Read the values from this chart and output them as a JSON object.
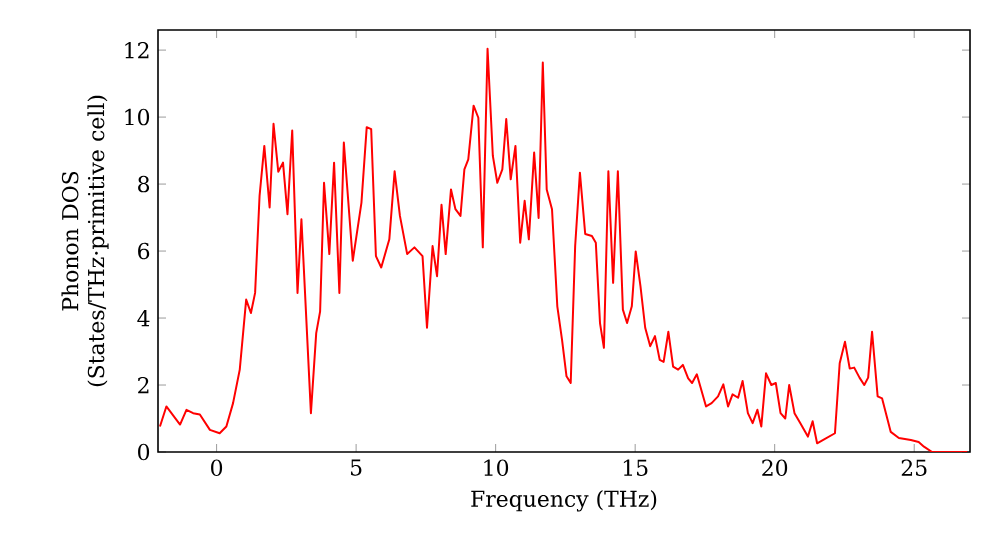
{
  "chart_data": {
    "type": "line",
    "xlabel": "Frequency (THz)",
    "ylabel": "Phonon DOS (States/THz·primitive cell)",
    "xlim": [
      -2.1,
      27
    ],
    "ylim": [
      0,
      12.6
    ],
    "xticks": [
      0,
      5,
      10,
      15,
      20,
      25
    ],
    "yticks": [
      0,
      2,
      4,
      6,
      8,
      10,
      12
    ],
    "grid": false,
    "marker": "none",
    "line_style": "solid",
    "series": [
      {
        "color": "#ff0000",
        "x": [
          -2.03,
          -1.8,
          -1.31,
          -1.08,
          -0.84,
          -0.6,
          -0.24,
          0.11,
          0.35,
          0.59,
          0.83,
          1.06,
          1.23,
          1.38,
          1.54,
          1.71,
          1.9,
          2.04,
          2.21,
          2.38,
          2.54,
          2.71,
          2.9,
          3.04,
          3.38,
          3.57,
          3.71,
          3.85,
          4.04,
          4.21,
          4.4,
          4.56,
          4.88,
          5.19,
          5.38,
          5.54,
          5.71,
          5.9,
          6.19,
          6.38,
          6.57,
          6.83,
          7.09,
          7.38,
          7.54,
          7.74,
          7.9,
          8.06,
          8.21,
          8.4,
          8.56,
          8.74,
          8.88,
          9.02,
          9.21,
          9.38,
          9.54,
          9.71,
          9.9,
          10.06,
          10.24,
          10.38,
          10.54,
          10.71,
          10.88,
          11.04,
          11.19,
          11.38,
          11.54,
          11.69,
          11.83,
          12.02,
          12.21,
          12.38,
          12.54,
          12.69,
          12.85,
          13.02,
          13.21,
          13.45,
          13.59,
          13.74,
          13.88,
          14.04,
          14.21,
          14.38,
          14.56,
          14.71,
          14.88,
          15.02,
          15.19,
          15.36,
          15.54,
          15.71,
          15.88,
          16.02,
          16.19,
          16.36,
          16.54,
          16.71,
          16.9,
          17.04,
          17.21,
          17.54,
          17.74,
          17.97,
          18.16,
          18.33,
          18.49,
          18.69,
          18.85,
          19.04,
          19.21,
          19.38,
          19.52,
          19.69,
          19.88,
          20.04,
          20.21,
          20.38,
          20.52,
          20.71,
          20.92,
          21.19,
          21.36,
          21.52,
          21.74,
          21.95,
          22.16,
          22.33,
          22.52,
          22.69,
          22.85,
          23.04,
          23.21,
          23.35,
          23.49,
          23.69,
          23.85,
          24.16,
          24.45,
          24.88,
          25.16,
          25.35,
          25.64,
          26.9
        ],
        "values": [
          0.76,
          1.36,
          0.82,
          1.26,
          1.16,
          1.12,
          0.66,
          0.56,
          0.76,
          1.46,
          2.46,
          4.55,
          4.15,
          4.75,
          7.65,
          9.14,
          7.3,
          9.8,
          8.37,
          8.64,
          7.1,
          9.6,
          4.75,
          6.95,
          1.16,
          3.55,
          4.2,
          8.04,
          5.91,
          8.64,
          4.75,
          9.24,
          5.71,
          7.44,
          9.7,
          9.64,
          5.85,
          5.51,
          6.35,
          8.38,
          7.05,
          5.91,
          6.11,
          5.85,
          3.71,
          6.15,
          5.25,
          7.38,
          5.91,
          7.84,
          7.25,
          7.05,
          8.44,
          8.74,
          10.34,
          9.98,
          6.11,
          12.04,
          8.84,
          8.04,
          8.44,
          9.94,
          8.14,
          9.14,
          6.25,
          7.5,
          6.35,
          8.94,
          6.99,
          11.63,
          7.84,
          7.25,
          4.35,
          3.35,
          2.26,
          2.06,
          6.15,
          8.34,
          6.51,
          6.45,
          6.25,
          3.85,
          3.11,
          8.38,
          5.05,
          8.38,
          4.25,
          3.85,
          4.35,
          5.99,
          4.95,
          3.71,
          3.16,
          3.46,
          2.75,
          2.69,
          3.59,
          2.55,
          2.46,
          2.6,
          2.2,
          2.06,
          2.32,
          1.36,
          1.46,
          1.66,
          2.02,
          1.36,
          1.72,
          1.62,
          2.12,
          1.16,
          0.86,
          1.26,
          0.76,
          2.35,
          2.0,
          2.06,
          1.16,
          1.0,
          2.0,
          1.16,
          0.86,
          0.46,
          0.92,
          0.26,
          0.36,
          0.46,
          0.56,
          2.65,
          3.29,
          2.49,
          2.52,
          2.22,
          2.0,
          2.22,
          3.59,
          1.66,
          1.6,
          0.6,
          0.42,
          0.36,
          0.3,
          0.16,
          0,
          0
        ]
      }
    ]
  }
}
